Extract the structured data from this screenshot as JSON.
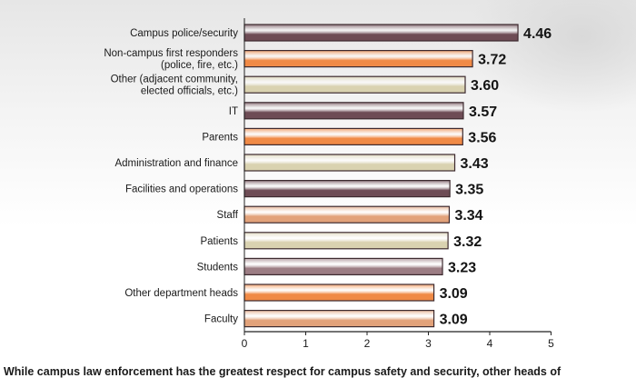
{
  "chart_data": {
    "type": "bar",
    "orientation": "horizontal",
    "categories": [
      [
        "Campus police/security"
      ],
      [
        "Non-campus first responders",
        "(police, fire, etc.)"
      ],
      [
        "Other (adjacent community,",
        "elected officials, etc.)"
      ],
      [
        "IT"
      ],
      [
        "Parents"
      ],
      [
        "Administration and finance"
      ],
      [
        "Facilities and operations"
      ],
      [
        "Staff"
      ],
      [
        "Patients"
      ],
      [
        "Students"
      ],
      [
        "Other department heads"
      ],
      [
        "Faculty"
      ]
    ],
    "values": [
      4.46,
      3.72,
      3.6,
      3.57,
      3.56,
      3.43,
      3.35,
      3.34,
      3.32,
      3.23,
      3.09,
      3.09
    ],
    "value_labels": [
      "4.46",
      "3.72",
      "3.60",
      "3.57",
      "3.56",
      "3.43",
      "3.35",
      "3.34",
      "3.32",
      "3.23",
      "3.09",
      "3.09"
    ],
    "xlim": [
      0,
      5
    ],
    "xticks": [
      "0",
      "1",
      "2",
      "3",
      "4",
      "5"
    ],
    "bar_colors": [
      "#6e4c55",
      "#f08a46",
      "#d9d2b0",
      "#6e4c55",
      "#f08a46",
      "#d9d2b0",
      "#6e4c55",
      "#e2a27a",
      "#d9d2b0",
      "#9c7d84",
      "#f08a46",
      "#e2a27a"
    ],
    "grid": false
  },
  "caption": "While campus law enforcement has the greatest respect for campus safety and security, other heads of"
}
